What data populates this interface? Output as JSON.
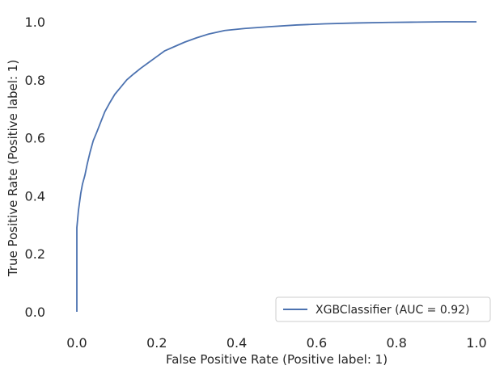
{
  "chart_data": {
    "type": "line",
    "title": "",
    "xlabel": "False Positive Rate (Positive label: 1)",
    "ylabel": "True Positive Rate (Positive label: 1)",
    "xlim": [
      0.0,
      1.0
    ],
    "ylim": [
      0.0,
      1.0
    ],
    "grid": false,
    "legend_position": "bottom-right",
    "x_ticks": [
      "0.0",
      "0.2",
      "0.4",
      "0.6",
      "0.8",
      "1.0"
    ],
    "y_ticks": [
      "0.0",
      "0.2",
      "0.4",
      "0.6",
      "0.8",
      "1.0"
    ],
    "series": [
      {
        "name": "XGBClassifier (AUC = 0.92)",
        "color": "#4c72b0",
        "x": [
          0.0,
          0.0,
          0.0,
          0.0,
          0.002,
          0.004,
          0.007,
          0.01,
          0.014,
          0.02,
          0.026,
          0.033,
          0.041,
          0.05,
          0.06,
          0.07,
          0.082,
          0.095,
          0.11,
          0.125,
          0.142,
          0.16,
          0.18,
          0.2,
          0.22,
          0.245,
          0.27,
          0.3,
          0.33,
          0.37,
          0.42,
          0.48,
          0.55,
          0.62,
          0.7,
          0.78,
          0.85,
          0.92,
          1.0
        ],
        "y": [
          0.0,
          0.1,
          0.2,
          0.29,
          0.32,
          0.35,
          0.38,
          0.41,
          0.44,
          0.47,
          0.51,
          0.55,
          0.59,
          0.62,
          0.655,
          0.69,
          0.72,
          0.75,
          0.775,
          0.8,
          0.82,
          0.84,
          0.86,
          0.88,
          0.9,
          0.915,
          0.93,
          0.945,
          0.958,
          0.97,
          0.977,
          0.983,
          0.989,
          0.993,
          0.996,
          0.998,
          0.999,
          1.0,
          1.0
        ]
      }
    ]
  }
}
